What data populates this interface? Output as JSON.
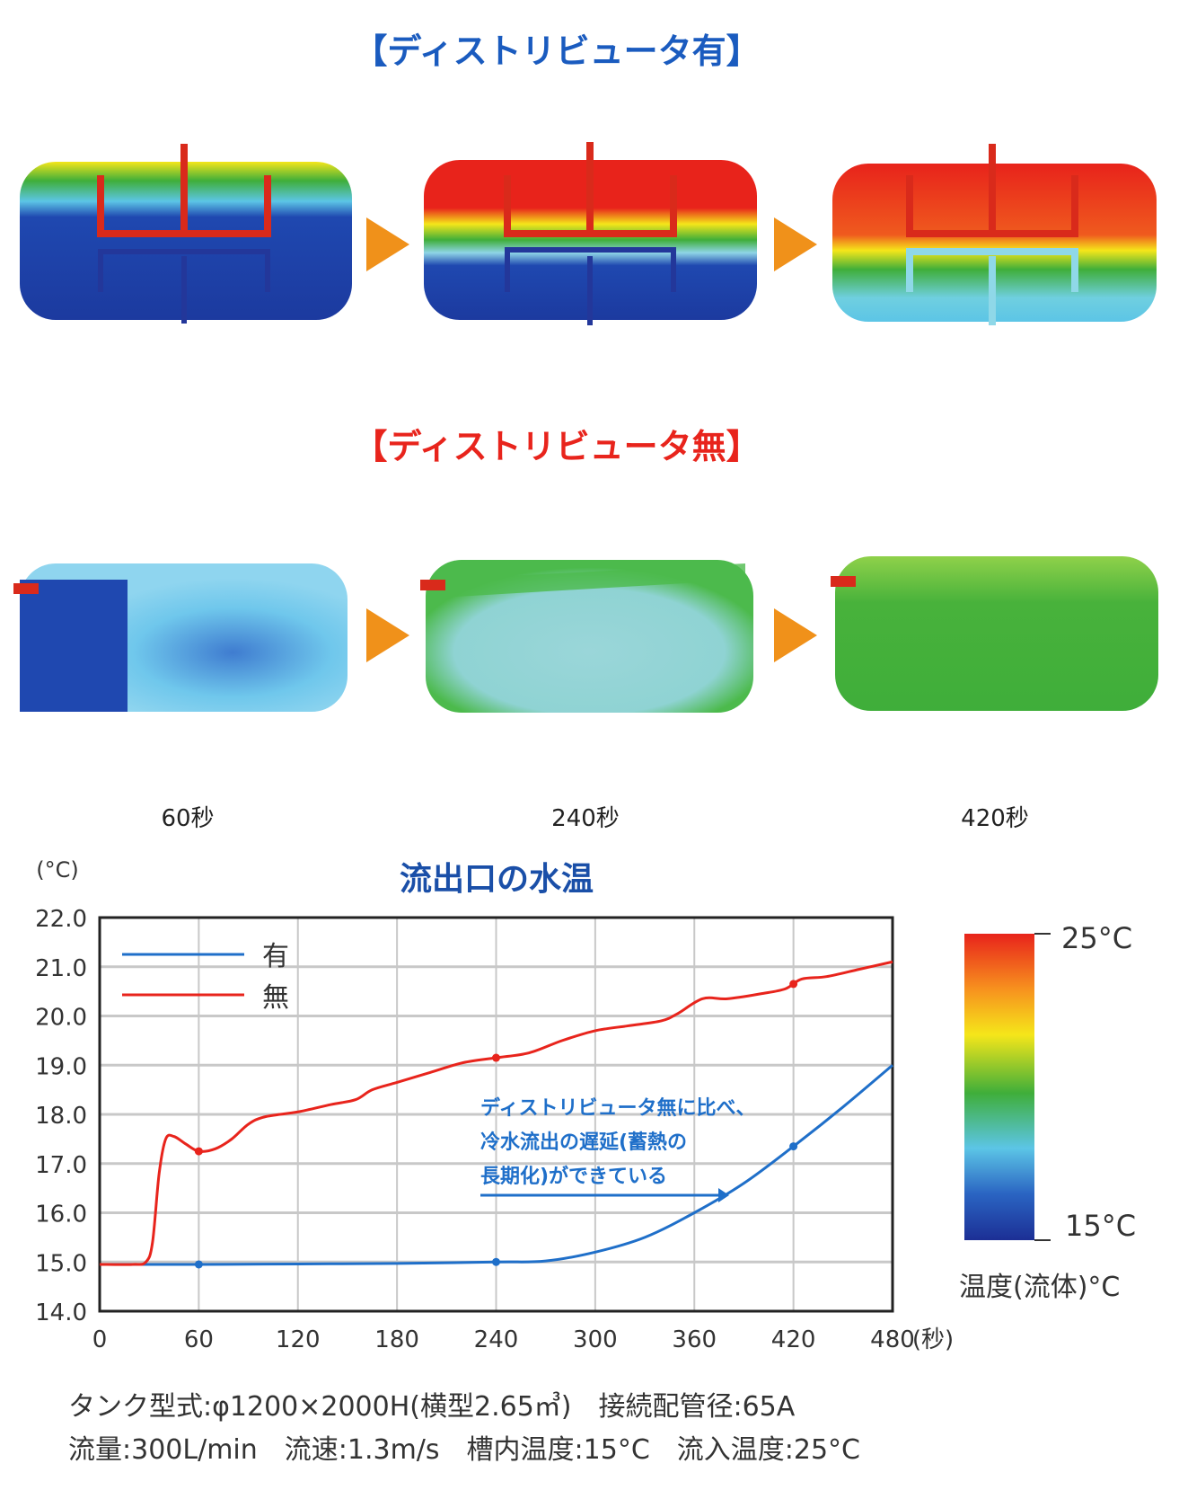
{
  "sections": {
    "with_distributor_title": "【ディストリビュータ有】",
    "without_distributor_title": "【ディストリビュータ無】",
    "with_color": "#1a5bbf",
    "without_color": "#e8241c"
  },
  "time_labels": [
    "60秒",
    "240秒",
    "420秒"
  ],
  "colorbar": {
    "max_label": "25°C",
    "min_label": "15°C",
    "caption": "温度(流体)°C",
    "colors": [
      "#e8231b",
      "#f7911e",
      "#f5e61a",
      "#3fae3a",
      "#5cc5e6",
      "#2a64c2",
      "#1c2f95"
    ]
  },
  "chart_data": {
    "type": "line",
    "title": "流出口の水温",
    "ylabel": "(°C)",
    "xlabel": "(秒)",
    "xlim": [
      0,
      480
    ],
    "ylim": [
      14.0,
      22.0
    ],
    "xticks": [
      "0",
      "60",
      "120",
      "180",
      "240",
      "300",
      "360",
      "420",
      "480"
    ],
    "yticks": [
      "14.0",
      "15.0",
      "16.0",
      "17.0",
      "18.0",
      "19.0",
      "20.0",
      "21.0",
      "22.0"
    ],
    "grid": true,
    "legend_placement": "top-left",
    "series": [
      {
        "name": "有",
        "color": "#1f6fc9",
        "x": [
          0,
          60,
          120,
          180,
          240,
          270,
          300,
          330,
          360,
          390,
          420,
          450,
          480
        ],
        "y": [
          14.95,
          14.95,
          14.96,
          14.97,
          15.0,
          15.02,
          15.2,
          15.5,
          16.0,
          16.6,
          17.35,
          18.15,
          19.0
        ],
        "markers_x": [
          60,
          240,
          420
        ]
      },
      {
        "name": "無",
        "color": "#e8241c",
        "x": [
          0,
          20,
          28,
          32,
          36,
          40,
          45,
          52,
          60,
          70,
          80,
          90,
          100,
          120,
          140,
          155,
          165,
          180,
          200,
          220,
          240,
          260,
          280,
          300,
          320,
          340,
          350,
          365,
          380,
          400,
          415,
          425,
          440,
          460,
          480
        ],
        "y": [
          14.95,
          14.95,
          15.0,
          15.4,
          16.8,
          17.5,
          17.55,
          17.4,
          17.25,
          17.3,
          17.5,
          17.8,
          17.95,
          18.05,
          18.2,
          18.3,
          18.5,
          18.65,
          18.85,
          19.05,
          19.15,
          19.25,
          19.5,
          19.7,
          19.8,
          19.9,
          20.05,
          20.35,
          20.35,
          20.45,
          20.55,
          20.75,
          20.8,
          20.95,
          21.1
        ],
        "markers_x": [
          60,
          240,
          420
        ]
      }
    ],
    "annotation": [
      "ディストリビュータ無に比べ、",
      "冷水流出の遅延(蓄熱の",
      "長期化)ができている"
    ]
  },
  "specs": {
    "line1": "タンク型式:φ1200×2000H(横型2.65㎥)　接続配管径:65A",
    "line2": "流量:300L/min　流速:1.3m/s　槽内温度:15°C　流入温度:25°C"
  }
}
